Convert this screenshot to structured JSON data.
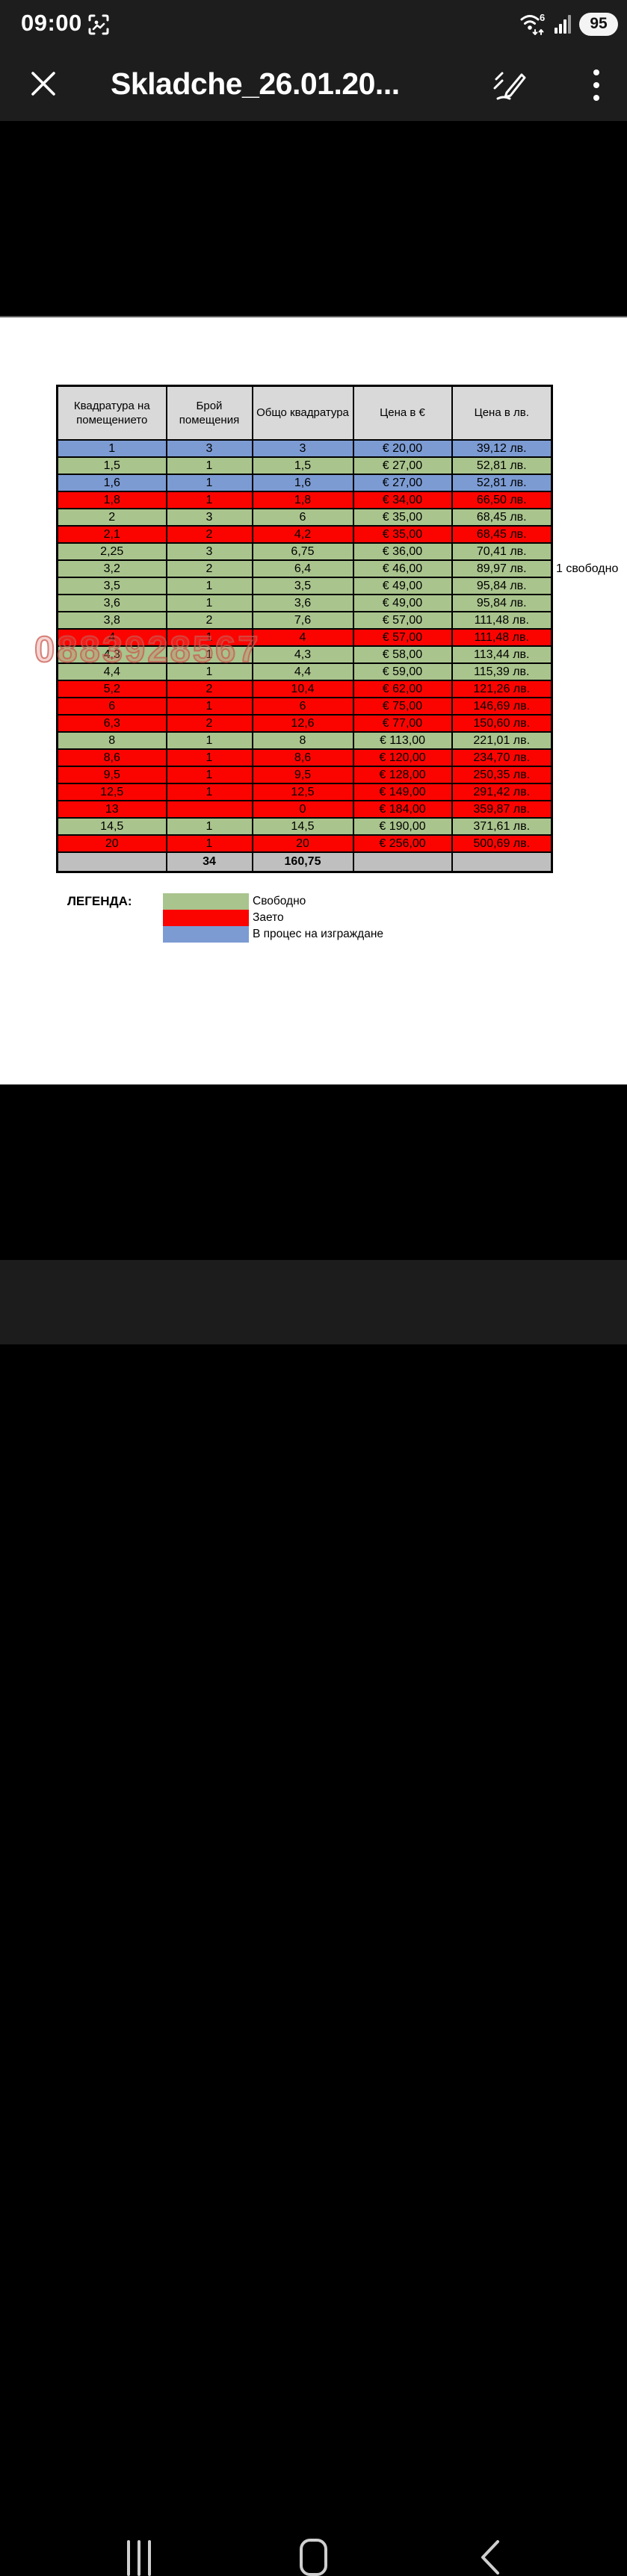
{
  "status_bar": {
    "time": "09:00",
    "wifi_label": "6",
    "battery_level": "95"
  },
  "app_bar": {
    "title": "Skladche_26.01.20..."
  },
  "document": {
    "table": {
      "headers": [
        "Квадратура на помещението",
        "Брой помещения",
        "Общо квадратура",
        "Цена в €",
        "Цена в лв."
      ],
      "rows": [
        {
          "area": "1",
          "rooms": "3",
          "total": "3",
          "eur": "€ 20,00",
          "lev": "39,12 лв.",
          "status": "construction"
        },
        {
          "area": "1,5",
          "rooms": "1",
          "total": "1,5",
          "eur": "€ 27,00",
          "lev": "52,81 лв.",
          "status": "free"
        },
        {
          "area": "1,6",
          "rooms": "1",
          "total": "1,6",
          "eur": "€ 27,00",
          "lev": "52,81 лв.",
          "status": "construction"
        },
        {
          "area": "1,8",
          "rooms": "1",
          "total": "1,8",
          "eur": "€ 34,00",
          "lev": "66,50 лв.",
          "status": "occupied"
        },
        {
          "area": "2",
          "rooms": "3",
          "total": "6",
          "eur": "€ 35,00",
          "lev": "68,45 лв.",
          "status": "free"
        },
        {
          "area": "2,1",
          "rooms": "2",
          "total": "4,2",
          "eur": "€ 35,00",
          "lev": "68,45 лв.",
          "status": "occupied"
        },
        {
          "area": "2,25",
          "rooms": "3",
          "total": "6,75",
          "eur": "€ 36,00",
          "lev": "70,41 лв.",
          "status": "free"
        },
        {
          "area": "3,2",
          "rooms": "2",
          "total": "6,4",
          "eur": "€ 46,00",
          "lev": "89,97 лв.",
          "status": "free"
        },
        {
          "area": "3,5",
          "rooms": "1",
          "total": "3,5",
          "eur": "€ 49,00",
          "lev": "95,84 лв.",
          "status": "free"
        },
        {
          "area": "3,6",
          "rooms": "1",
          "total": "3,6",
          "eur": "€ 49,00",
          "lev": "95,84 лв.",
          "status": "free"
        },
        {
          "area": "3,8",
          "rooms": "2",
          "total": "7,6",
          "eur": "€ 57,00",
          "lev": "111,48 лв.",
          "status": "free"
        },
        {
          "area": "4",
          "rooms": "1",
          "total": "4",
          "eur": "€ 57,00",
          "lev": "111,48 лв.",
          "status": "occupied"
        },
        {
          "area": "4,3",
          "rooms": "1",
          "total": "4,3",
          "eur": "€ 58,00",
          "lev": "113,44 лв.",
          "status": "free"
        },
        {
          "area": "4,4",
          "rooms": "1",
          "total": "4,4",
          "eur": "€ 59,00",
          "lev": "115,39 лв.",
          "status": "free"
        },
        {
          "area": "5,2",
          "rooms": "2",
          "total": "10,4",
          "eur": "€ 62,00",
          "lev": "121,26 лв.",
          "status": "occupied"
        },
        {
          "area": "6",
          "rooms": "1",
          "total": "6",
          "eur": "€ 75,00",
          "lev": "146,69 лв.",
          "status": "occupied"
        },
        {
          "area": "6,3",
          "rooms": "2",
          "total": "12,6",
          "eur": "€ 77,00",
          "lev": "150,60 лв.",
          "status": "occupied"
        },
        {
          "area": "8",
          "rooms": "1",
          "total": "8",
          "eur": "€ 113,00",
          "lev": "221,01 лв.",
          "status": "free"
        },
        {
          "area": "8,6",
          "rooms": "1",
          "total": "8,6",
          "eur": "€ 120,00",
          "lev": "234,70 лв.",
          "status": "occupied"
        },
        {
          "area": "9,5",
          "rooms": "1",
          "total": "9,5",
          "eur": "€ 128,00",
          "lev": "250,35 лв.",
          "status": "occupied"
        },
        {
          "area": "12,5",
          "rooms": "1",
          "total": "12,5",
          "eur": "€ 149,00",
          "lev": "291,42 лв.",
          "status": "occupied"
        },
        {
          "area": "13",
          "rooms": "",
          "total": "0",
          "eur": "€ 184,00",
          "lev": "359,87 лв.",
          "status": "occupied"
        },
        {
          "area": "14,5",
          "rooms": "1",
          "total": "14,5",
          "eur": "€ 190,00",
          "lev": "371,61 лв.",
          "status": "free"
        },
        {
          "area": "20",
          "rooms": "1",
          "total": "20",
          "eur": "€ 256,00",
          "lev": "500,69 лв.",
          "status": "occupied"
        }
      ],
      "totals": {
        "rooms": "34",
        "total": "160,75"
      }
    },
    "annotation": "1 свободно",
    "watermark": "0883928567",
    "legend": {
      "title": "ЛЕГЕНДА:",
      "items": [
        {
          "label": "Свободно",
          "color_key": "free"
        },
        {
          "label": "Заето",
          "color_key": "occupied"
        },
        {
          "label": "В процес на изграждане",
          "color_key": "construction"
        }
      ]
    }
  },
  "colors": {
    "free": "#a9c48d",
    "occupied": "#fb0400",
    "construction": "#7c9bd3",
    "header": "#d9d9d9",
    "total": "#bfbfbf",
    "watermark": "#c9584e"
  }
}
